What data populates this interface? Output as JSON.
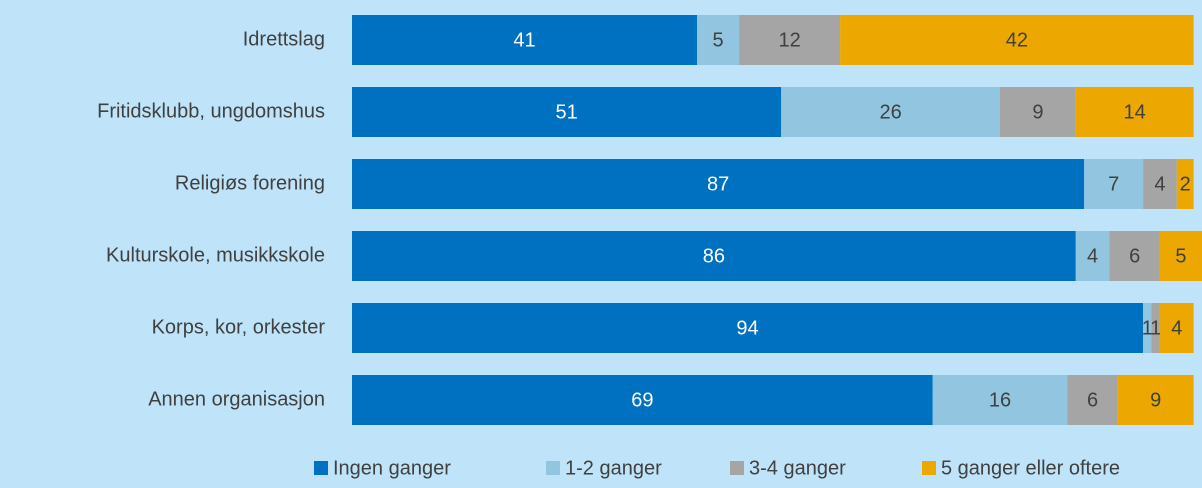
{
  "chart_data": {
    "type": "stacked-bar-horizontal",
    "categories": [
      "Idrettslag",
      "Fritidsklubb, ungdomshus",
      "Religiøs forening",
      "Kulturskole, musikkskole",
      "Korps, kor, orkester",
      "Annen organisasjon"
    ],
    "series": [
      {
        "name": "Ingen ganger",
        "color": "#0070c0",
        "values": [
          41,
          51,
          87,
          86,
          94,
          69
        ]
      },
      {
        "name": "1-2 ganger",
        "color": "#92c5e0",
        "values": [
          5,
          26,
          7,
          4,
          1,
          16
        ]
      },
      {
        "name": "3-4 ganger",
        "color": "#a5a5a5",
        "values": [
          12,
          9,
          4,
          6,
          1,
          6
        ]
      },
      {
        "name": "5 ganger eller oftere",
        "color": "#eca700",
        "values": [
          42,
          14,
          2,
          5,
          4,
          9
        ]
      }
    ],
    "legend": "bottom"
  }
}
